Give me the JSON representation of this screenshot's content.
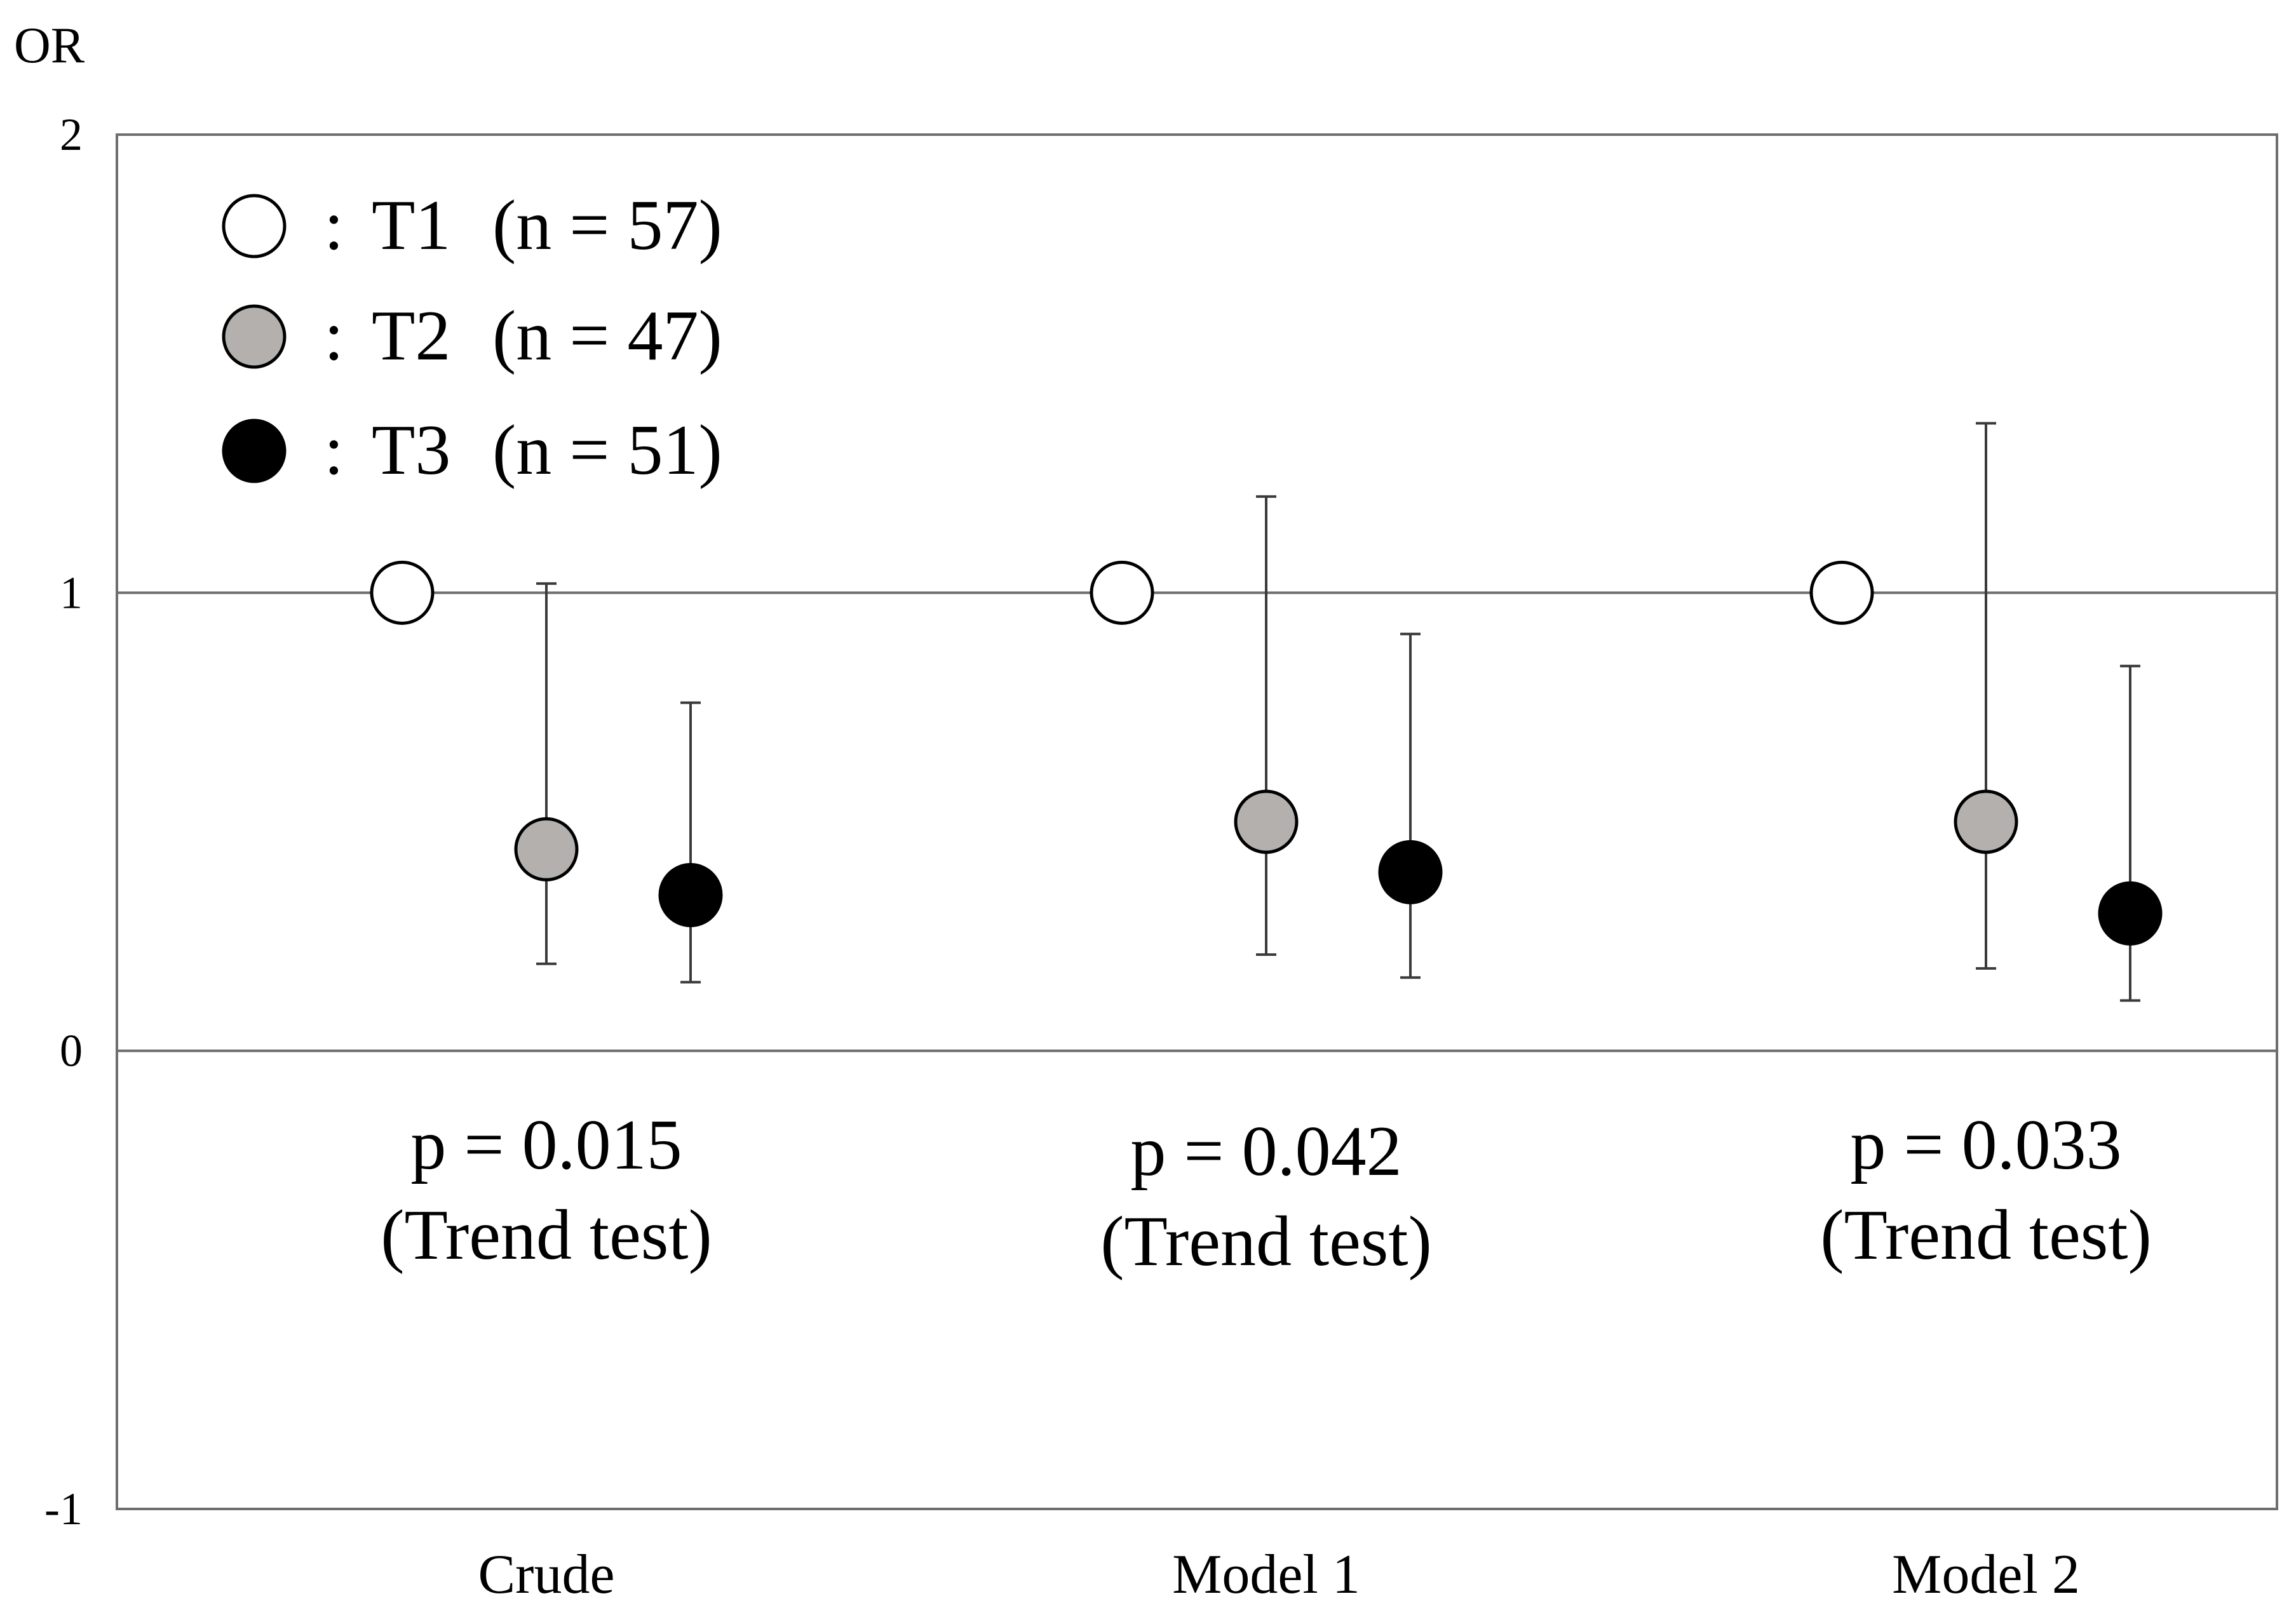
{
  "chart_data": {
    "type": "scatter",
    "ylabel": "OR",
    "ylim": [
      -1,
      2
    ],
    "yticks": [
      2,
      1,
      0,
      -1
    ],
    "yticklabels": [
      "2",
      "1",
      "0",
      "-1"
    ],
    "reference_lines": [
      1,
      0
    ],
    "categories": [
      "Crude",
      "Model 1",
      "Model 2"
    ],
    "series": [
      {
        "name": "T1",
        "legend_label": "T1",
        "n_label": "(n = 57)",
        "fill": "#ffffff",
        "values": [
          1.0,
          1.0,
          1.0
        ],
        "ci_low": [
          null,
          null,
          null
        ],
        "ci_high": [
          null,
          null,
          null
        ]
      },
      {
        "name": "T2",
        "legend_label": "T2",
        "n_label": "(n = 47)",
        "fill": "#b3b0ad",
        "values": [
          0.44,
          0.5,
          0.5
        ],
        "ci_low": [
          0.19,
          0.21,
          0.18
        ],
        "ci_high": [
          1.02,
          1.21,
          1.37
        ]
      },
      {
        "name": "T3",
        "legend_label": "T3",
        "n_label": "(n = 51)",
        "fill": "#000000",
        "values": [
          0.34,
          0.39,
          0.3
        ],
        "ci_low": [
          0.15,
          0.16,
          0.11
        ],
        "ci_high": [
          0.76,
          0.91,
          0.84
        ]
      }
    ],
    "annotations": [
      {
        "category": "Crude",
        "line1": "p = 0.015",
        "line2": "(Trend test)"
      },
      {
        "category": "Model 1",
        "line1": "p = 0.042",
        "line2": "(Trend test)"
      },
      {
        "category": "Model 2",
        "line1": "p = 0.033",
        "line2": "(Trend test)"
      }
    ],
    "legend": {
      "position": "top-left",
      "separator": ":"
    },
    "grid": false
  }
}
